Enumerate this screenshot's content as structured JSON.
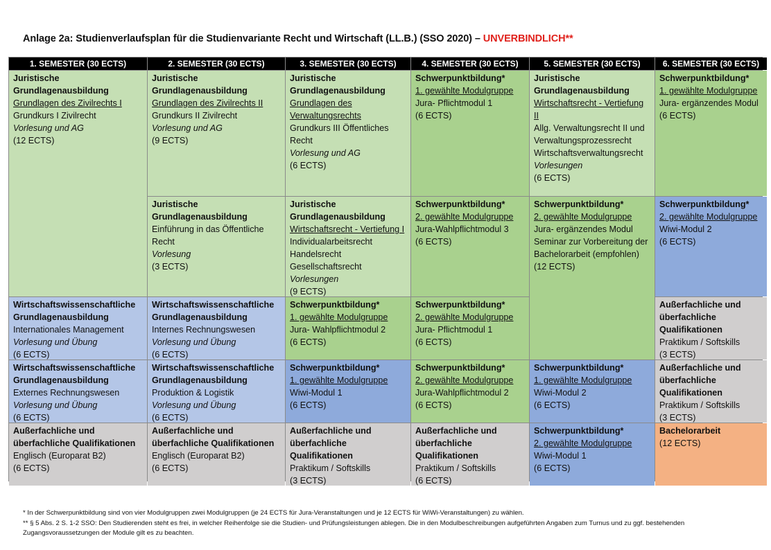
{
  "title": {
    "main": "Anlage 2a: Studienverlaufsplan für die Studienvariante Recht und Wirtschaft (LL.B.) (SSO 2020) – ",
    "warning": "UNVERBINDLICH**",
    "warning_color": "#e0211b"
  },
  "headers": [
    "1. SEMESTER (30 ECTS)",
    "2. SEMESTER (30 ECTS)",
    "3. SEMESTER (30 ECTS)",
    "4. SEMESTER (30 ECTS)",
    "5. SEMESTER (30 ECTS)",
    "6. SEMESTER (30 ECTS)"
  ],
  "colors": {
    "jura_grundlagen": "#c5dfb4",
    "schwerpunkt_jura": "#a9d18e",
    "wiwi_grundlagen": "#b4c6e7",
    "schwerpunkt_wiwi": "#8eaadb",
    "qualifikationen": "#d0cece",
    "bachelorarbeit": "#f4b183"
  },
  "cells": {
    "s1_jura": {
      "title": "Juristische Grundlagenausbildung",
      "link": "Grundlagen des Zivilrechts I",
      "module": "Grundkurs I Zivilrecht",
      "form": "Vorlesung und AG",
      "ects": "(12 ECTS)"
    },
    "s2_jura1": {
      "title": "Juristische Grundlagenausbildung",
      "link": "Grundlagen des Zivilrechts II",
      "module": "Grundkurs II Zivilrecht",
      "form": "Vorlesung und AG",
      "ects": "(9 ECTS)"
    },
    "s2_jura2": {
      "title": "Juristische Grundlagenausbildung",
      "module": "Einführung in das Öffentliche Recht",
      "form": "Vorlesung",
      "ects": "(3 ECTS)"
    },
    "s3_jura1": {
      "title": "Juristische Grundlagenausbildung",
      "link": "Grundlagen des Verwaltungsrechts",
      "module": "Grundkurs III Öffentliches Recht",
      "form": "Vorlesung und AG",
      "ects": "(6 ECTS)"
    },
    "s3_jura2": {
      "title": "Juristische Grundlagenausbildung",
      "link": "Wirtschaftsrecht - Vertiefung I",
      "module": "Individualarbeitsrecht Handelsrecht Gesellschaftsrecht",
      "form": "Vorlesungen",
      "ects": "(9 ECTS)"
    },
    "s4_sp1": {
      "title": "Schwerpunktbildung*",
      "link": "1. gewählte Modulgruppe",
      "module": "Jura- Pflichtmodul 1",
      "ects": "(6 ECTS)"
    },
    "s4_sp2": {
      "title": "Schwerpunktbildung*",
      "link": "2. gewählte Modulgruppe",
      "module": "Jura-Wahlpflichtmodul 3",
      "ects": "(6 ECTS)"
    },
    "s5_jura": {
      "title": "Juristische Grundlagenausbildung",
      "link": "Wirtschaftsrecht - Vertiefung II",
      "module": "Allg. Verwaltungsrecht II und Verwaltungsprozessrecht Wirtschaftsverwaltungsrecht",
      "form": "Vorlesungen",
      "ects": "(6 ECTS)"
    },
    "s5_sp": {
      "title": "Schwerpunktbildung*",
      "link": "2. gewählte Modulgruppe",
      "module": "Jura- ergänzendes Modul Seminar zur Vorbereitung der Bachelorarbeit (empfohlen)",
      "ects": "(12 ECTS)"
    },
    "s6_sp1": {
      "title": "Schwerpunktbildung*",
      "link": "1. gewählte Modulgruppe",
      "module": "Jura- ergänzendes Modul",
      "ects": "(6 ECTS)"
    },
    "s6_sp2": {
      "title": "Schwerpunktbildung*",
      "link": "2. gewählte Modulgruppe",
      "module": "Wiwi-Modul 2",
      "ects": "(6 ECTS)"
    },
    "s1_wiwi1": {
      "title": "Wirtschaftswissenschaftliche Grundlagenausbildung",
      "module": "Internationales Management",
      "form": "Vorlesung und Übung",
      "ects": "(6 ECTS)"
    },
    "s2_wiwi1": {
      "title": "Wirtschaftswissenschaftliche Grundlagenausbildung",
      "module": "Internes Rechnungswesen",
      "form": "Vorlesung und Übung",
      "ects": "(6 ECTS)"
    },
    "s3_sp3": {
      "title": "Schwerpunktbildung*",
      "link": "1. gewählte Modulgruppe",
      "module": "Jura- Wahlpflichtmodul 2",
      "ects": "(6 ECTS)"
    },
    "s4_sp3": {
      "title": "Schwerpunktbildung*",
      "link": "2. gewählte Modulgruppe",
      "module": "Jura- Pflichtmodul 1",
      "ects": "(6 ECTS)"
    },
    "s6_q1": {
      "title": "Außerfachliche und überfachliche Qualifikationen",
      "module": "Praktikum / Softskills",
      "ects": "(3 ECTS)"
    },
    "s1_wiwi2": {
      "title": "Wirtschaftswissenschaftliche Grundlagenausbildung",
      "module": "Externes Rechnungswesen",
      "form": "Vorlesung und Übung",
      "ects": "(6 ECTS)"
    },
    "s2_wiwi2": {
      "title": "Wirtschaftswissenschaftliche Grundlagenausbildung",
      "module": "Produktion & Logistik",
      "form": "Vorlesung und Übung",
      "ects": "(6 ECTS)"
    },
    "s3_sp4": {
      "title": "Schwerpunktbildung*",
      "link": "1. gewählte Modulgruppe",
      "module": "Wiwi-Modul 1",
      "ects": "(6 ECTS)"
    },
    "s4_sp4": {
      "title": "Schwerpunktbildung*",
      "link": "2. gewählte Modulgruppe",
      "module": "Jura-Wahlpflichtmodul 2",
      "ects": "(6 ECTS)"
    },
    "s5_sp2": {
      "title": "Schwerpunktbildung*",
      "link": "1. gewählte Modulgruppe",
      "module": "Wiwi-Modul 2",
      "ects": "(6 ECTS)"
    },
    "s6_q2": {
      "title": "Außerfachliche und überfachliche Qualifikationen",
      "module": "Praktikum / Softskills",
      "ects": "(3 ECTS)"
    },
    "s1_q": {
      "title": "Außerfachliche und überfachliche Qualifikationen",
      "module": "Englisch (Europarat B2)",
      "ects": "(6 ECTS)"
    },
    "s2_q": {
      "title": "Außerfachliche und überfachliche Qualifikationen",
      "module": "Englisch (Europarat B2)",
      "ects": "(6 ECTS)"
    },
    "s3_q": {
      "title": "Außerfachliche und überfachliche Qualifikationen",
      "module": "Praktikum / Softskills",
      "ects": "(3 ECTS)"
    },
    "s4_q": {
      "title": "Außerfachliche und überfachliche Qualifikationen",
      "module": "Praktikum / Softskills",
      "ects": "(6 ECTS)"
    },
    "s5_sp3": {
      "title": "Schwerpunktbildung*",
      "link": "2. gewählte Modulgruppe",
      "module": "Wiwi-Modul 1",
      "ects": "(6 ECTS)"
    },
    "s6_ba": {
      "title": "Bachelorarbeit",
      "ects": "(12 ECTS)"
    }
  },
  "footnotes": [
    "*  In der Schwerpunktbildung sind von vier Modulgruppen zwei Modulgruppen (je 24 ECTS für Jura-Veranstaltungen und je 12 ECTS für WiWi-Veranstaltungen) zu wählen.",
    "** § 5 Abs. 2 S. 1-2 SSO: Den Studierenden steht es frei, in welcher Reihenfolge sie die Studien- und Prüfungsleistungen ablegen. Die in den Modulbeschreibungen aufgeführten Angaben zum Turnus und zu ggf. bestehenden Zugangsvoraussetzungen der Module gilt es zu beachten."
  ]
}
